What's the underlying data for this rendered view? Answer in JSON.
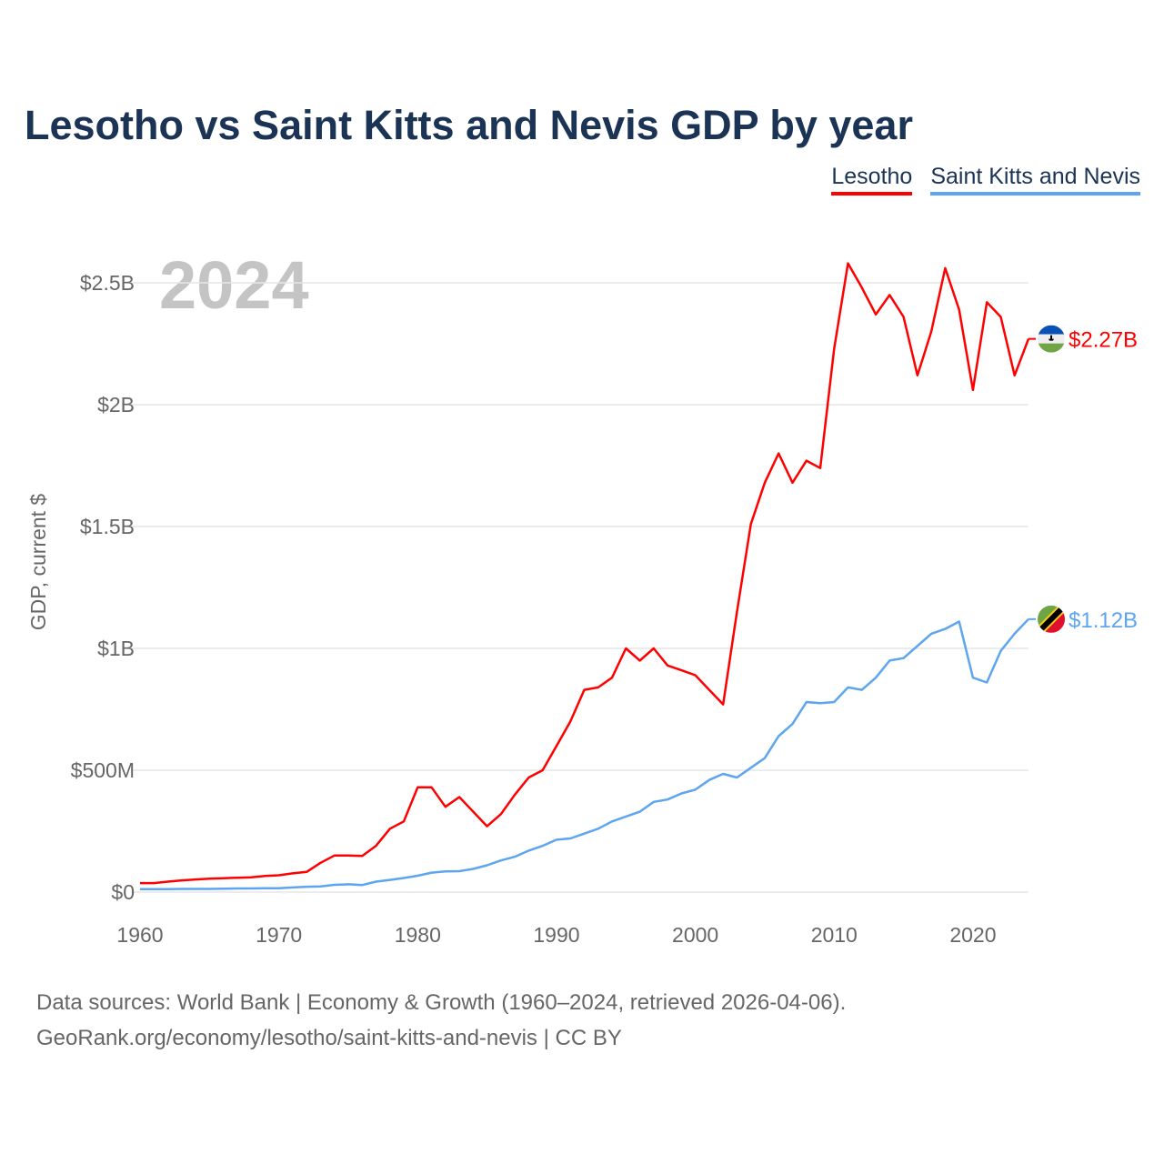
{
  "chart_data": {
    "type": "line",
    "title": "Lesotho vs Saint Kitts and Nevis GDP by year",
    "ylabel": "GDP, current $",
    "xlabel": "",
    "year_watermark": "2024",
    "ylim": [
      0,
      2.5
    ],
    "xlim": [
      1960,
      2024
    ],
    "grid": true,
    "legend_position": "top-right",
    "x_ticks": [
      "1960",
      "1970",
      "1980",
      "1990",
      "2000",
      "2010",
      "2020"
    ],
    "y_ticks": [
      {
        "v": 0,
        "label": "$0"
      },
      {
        "v": 0.5,
        "label": "$500M"
      },
      {
        "v": 1,
        "label": "$1B"
      },
      {
        "v": 1.5,
        "label": "$1.5B"
      },
      {
        "v": 2,
        "label": "$2B"
      },
      {
        "v": 2.5,
        "label": "$2.5B"
      }
    ],
    "x": [
      1960,
      1961,
      1962,
      1963,
      1964,
      1965,
      1966,
      1967,
      1968,
      1969,
      1970,
      1971,
      1972,
      1973,
      1974,
      1975,
      1976,
      1977,
      1978,
      1979,
      1980,
      1981,
      1982,
      1983,
      1984,
      1985,
      1986,
      1987,
      1988,
      1989,
      1990,
      1991,
      1992,
      1993,
      1994,
      1995,
      1996,
      1997,
      1998,
      1999,
      2000,
      2001,
      2002,
      2003,
      2004,
      2005,
      2006,
      2007,
      2008,
      2009,
      2010,
      2011,
      2012,
      2013,
      2014,
      2015,
      2016,
      2017,
      2018,
      2019,
      2020,
      2021,
      2022,
      2023,
      2024
    ],
    "series": [
      {
        "name": "Lesotho",
        "color": "#ff0000",
        "end_label": "$2.27B",
        "values": [
          0.037,
          0.037,
          0.043,
          0.048,
          0.052,
          0.055,
          0.057,
          0.059,
          0.061,
          0.066,
          0.069,
          0.077,
          0.083,
          0.12,
          0.15,
          0.15,
          0.148,
          0.19,
          0.26,
          0.29,
          0.43,
          0.43,
          0.35,
          0.39,
          0.33,
          0.27,
          0.32,
          0.4,
          0.47,
          0.5,
          0.6,
          0.7,
          0.83,
          0.84,
          0.88,
          1.0,
          0.95,
          1.0,
          0.93,
          0.91,
          0.89,
          0.83,
          0.77,
          1.15,
          1.51,
          1.68,
          1.8,
          1.68,
          1.77,
          1.74,
          2.23,
          2.58,
          2.48,
          2.37,
          2.45,
          2.36,
          2.12,
          2.3,
          2.56,
          2.39,
          2.06,
          2.42,
          2.36,
          2.12,
          2.27
        ]
      },
      {
        "name": "Saint Kitts and Nevis",
        "color": "#5da5ef",
        "end_label": "$1.12B",
        "values": [
          0.012,
          0.012,
          0.012,
          0.013,
          0.013,
          0.013,
          0.014,
          0.015,
          0.015,
          0.016,
          0.016,
          0.019,
          0.022,
          0.023,
          0.03,
          0.032,
          0.029,
          0.043,
          0.05,
          0.058,
          0.067,
          0.08,
          0.085,
          0.086,
          0.095,
          0.11,
          0.13,
          0.145,
          0.17,
          0.19,
          0.215,
          0.22,
          0.24,
          0.26,
          0.29,
          0.31,
          0.33,
          0.37,
          0.38,
          0.405,
          0.42,
          0.46,
          0.485,
          0.47,
          0.51,
          0.55,
          0.64,
          0.69,
          0.78,
          0.775,
          0.78,
          0.84,
          0.83,
          0.88,
          0.95,
          0.96,
          1.01,
          1.06,
          1.08,
          1.11,
          0.88,
          0.86,
          0.99,
          1.06,
          1.12
        ]
      }
    ]
  },
  "footer": {
    "line1": "Data sources: World Bank | Economy & Growth (1960–2024, retrieved 2026-04-06).",
    "line2": "GeoRank.org/economy/lesotho/saint-kitts-and-nevis | CC BY"
  }
}
